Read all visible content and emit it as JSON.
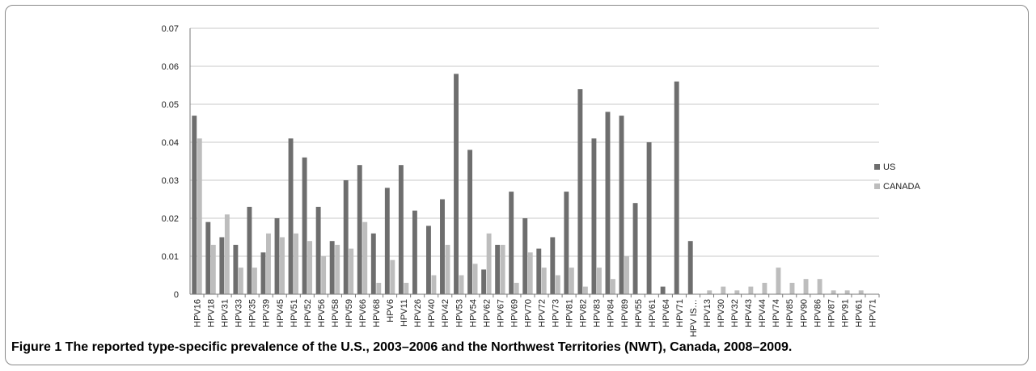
{
  "figure": {
    "caption": "Figure 1 The reported type-specific prevalence of the U.S., 2003–2006 and the Northwest Territories (NWT), Canada, 2008–2009."
  },
  "colors": {
    "us": "#6e6e6e",
    "canada": "#bdbdbd",
    "grid": "#c8c8c8",
    "axis": "#7a7a7a"
  },
  "chart_data": {
    "type": "bar",
    "title": "",
    "xlabel": "",
    "ylabel": "",
    "ylim": [
      0,
      0.07
    ],
    "yticks": [
      0,
      0.01,
      0.02,
      0.03,
      0.04,
      0.05,
      0.06,
      0.07
    ],
    "ytick_labels": [
      "0",
      "0.01",
      "0.02",
      "0.03",
      "0.04",
      "0.05",
      "0.06",
      "0.07"
    ],
    "grid": true,
    "legend": "right",
    "categories": [
      "HPV16",
      "HPV18",
      "HPV31",
      "HPV33",
      "HPV35",
      "HPV39",
      "HPV45",
      "HPV51",
      "HPV52",
      "HPV56",
      "HPV58",
      "HPV59",
      "HPV66",
      "HPV68",
      "HPV6",
      "HPV11",
      "HPV26",
      "HPV40",
      "HPV42",
      "HPV53",
      "HPV54",
      "HPV62",
      "HPV67",
      "HPV69",
      "HPV70",
      "HPV72",
      "HPV73",
      "HPV81",
      "HPV82",
      "HPV83",
      "HPV84",
      "HPV89",
      "HPV55",
      "HPV61",
      "HPV64",
      "HPV71",
      "HPV IS…",
      "HPV13",
      "HPV30",
      "HPV32",
      "HPV43",
      "HPV44",
      "HPV74",
      "HPV85",
      "HPV90",
      "HPV86",
      "HPV87",
      "HPV91",
      "HPV61",
      "HPV71"
    ],
    "series": [
      {
        "name": "US",
        "values": [
          0.047,
          0.019,
          0.015,
          0.013,
          0.023,
          0.011,
          0.02,
          0.041,
          0.036,
          0.023,
          0.014,
          0.03,
          0.034,
          0.016,
          0.028,
          0.034,
          0.022,
          0.018,
          0.025,
          0.058,
          0.038,
          0.0065,
          0.013,
          0.027,
          0.02,
          0.012,
          0.015,
          0.027,
          0.054,
          0.041,
          0.048,
          0.047,
          0.024,
          0.04,
          0.002,
          0.056,
          0.014,
          0,
          0,
          0,
          0,
          0,
          0,
          0,
          0,
          0,
          0,
          0,
          0,
          0
        ]
      },
      {
        "name": "CANADA",
        "values": [
          0.041,
          0.013,
          0.021,
          0.007,
          0.007,
          0.016,
          0.015,
          0.016,
          0.014,
          0.01,
          0.013,
          0.012,
          0.019,
          0.003,
          0.009,
          0.003,
          0,
          0.005,
          0.013,
          0.005,
          0.008,
          0.016,
          0.013,
          0.003,
          0.011,
          0.007,
          0.005,
          0.007,
          0.002,
          0.007,
          0.004,
          0.01,
          0,
          0,
          0,
          0,
          0,
          0.001,
          0.002,
          0.001,
          0.002,
          0.003,
          0.007,
          0.003,
          0.004,
          0.004,
          0.001,
          0.001,
          0.001,
          0
        ]
      }
    ]
  }
}
